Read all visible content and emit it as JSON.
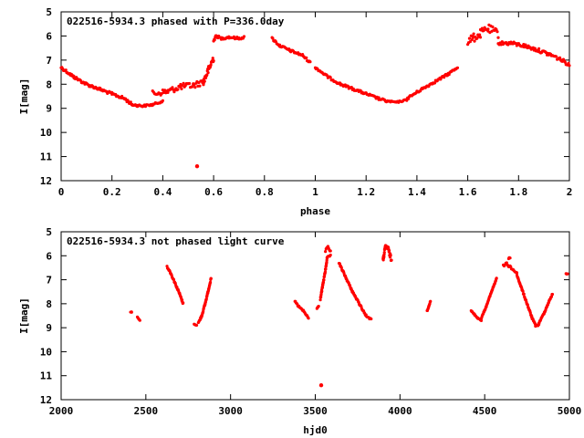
{
  "chart_data": [
    {
      "type": "scatter",
      "title": "022516-5934.3 phased with P=336.0day",
      "xlabel": "phase",
      "ylabel": "I[mag]",
      "xlim": [
        0,
        2
      ],
      "ylim": [
        12,
        5
      ],
      "y_inverted": true,
      "grid": false,
      "legend": "none",
      "color": "#ff0000",
      "xticks": [
        "0",
        "0.2",
        "0.4",
        "0.6",
        "0.8",
        "1",
        "1.2",
        "1.4",
        "1.6",
        "1.8",
        "2"
      ],
      "xtick_values": [
        0,
        0.2,
        0.4,
        0.6,
        0.8,
        1,
        1.2,
        1.4,
        1.6,
        1.8,
        2
      ],
      "yticks": [
        "5",
        "6",
        "7",
        "8",
        "9",
        "10",
        "11",
        "12"
      ],
      "ytick_values": [
        5,
        6,
        7,
        8,
        9,
        10,
        11,
        12
      ],
      "segments": [
        {
          "x": [
            0.0,
            0.05,
            0.1,
            0.15,
            0.2,
            0.25,
            0.28
          ],
          "y": [
            7.3,
            7.7,
            8.0,
            8.2,
            8.4,
            8.6,
            8.85
          ],
          "spread": 0.12
        },
        {
          "x": [
            0.28,
            0.32,
            0.36,
            0.4
          ],
          "y": [
            8.85,
            8.9,
            8.85,
            8.7
          ],
          "spread": 0.08
        },
        {
          "x": [
            0.36,
            0.42,
            0.47,
            0.52,
            0.56
          ],
          "y": [
            8.4,
            8.3,
            8.1,
            8.05,
            7.9
          ],
          "spread": 0.25
        },
        {
          "x": [
            0.56,
            0.58,
            0.6
          ],
          "y": [
            7.9,
            7.4,
            6.9
          ],
          "spread": 0.3
        },
        {
          "x": [
            0.6,
            0.61,
            0.63,
            0.66,
            0.7,
            0.72
          ],
          "y": [
            6.2,
            6.0,
            6.1,
            6.05,
            6.1,
            6.05
          ],
          "spread": 0.1
        },
        {
          "x": [
            0.83,
            0.86,
            0.9,
            0.95,
            0.98
          ],
          "y": [
            6.1,
            6.4,
            6.6,
            6.8,
            7.1
          ],
          "spread": 0.1
        },
        {
          "x": [
            1.0,
            1.05,
            1.1,
            1.15,
            1.2,
            1.25,
            1.28
          ],
          "y": [
            7.3,
            7.7,
            8.0,
            8.2,
            8.4,
            8.6,
            8.7
          ],
          "spread": 0.1
        },
        {
          "x": [
            1.28,
            1.32,
            1.36
          ],
          "y": [
            8.7,
            8.75,
            8.65
          ],
          "spread": 0.06
        },
        {
          "x": [
            1.36,
            1.42,
            1.47,
            1.52,
            1.56
          ],
          "y": [
            8.6,
            8.2,
            7.9,
            7.6,
            7.3
          ],
          "spread": 0.1
        },
        {
          "x": [
            1.6,
            1.62,
            1.65,
            1.68,
            1.72
          ],
          "y": [
            6.2,
            6.1,
            5.9,
            5.7,
            5.9
          ],
          "spread": 0.35
        },
        {
          "x": [
            1.72,
            1.77,
            1.82,
            1.88,
            1.93,
            1.97,
            2.0
          ],
          "y": [
            6.3,
            6.3,
            6.4,
            6.6,
            6.8,
            7.0,
            7.2
          ],
          "spread": 0.15
        }
      ],
      "outliers": [
        {
          "x": 0.535,
          "y": 11.4
        },
        {
          "x": 0.3,
          "y": 8.9
        }
      ]
    },
    {
      "type": "scatter",
      "title": "022516-5934.3 not phased light curve",
      "xlabel": "hjd0",
      "ylabel": "I[mag]",
      "xlim": [
        2000,
        5000
      ],
      "ylim": [
        12,
        5
      ],
      "y_inverted": true,
      "grid": false,
      "legend": "none",
      "color": "#ff0000",
      "xticks": [
        "2000",
        "2500",
        "3000",
        "3500",
        "4000",
        "4500",
        "5000"
      ],
      "xtick_values": [
        2000,
        2500,
        3000,
        3500,
        4000,
        4500,
        5000
      ],
      "yticks": [
        "5",
        "6",
        "7",
        "8",
        "9",
        "10",
        "11",
        "12"
      ],
      "ytick_values": [
        5,
        6,
        7,
        8,
        9,
        10,
        11,
        12
      ],
      "segments": [
        {
          "x": [
            2410
          ],
          "y": [
            8.35
          ],
          "spread": 0.02
        },
        {
          "x": [
            2450,
            2465
          ],
          "y": [
            8.55,
            8.7
          ],
          "spread": 0.02
        },
        {
          "x": [
            2625,
            2645,
            2670,
            2700,
            2720
          ],
          "y": [
            6.45,
            6.7,
            7.1,
            7.6,
            8.0
          ],
          "spread": 0.08
        },
        {
          "x": [
            2785,
            2800
          ],
          "y": [
            8.85,
            8.9
          ],
          "spread": 0.02
        },
        {
          "x": [
            2810,
            2830,
            2850,
            2870,
            2885
          ],
          "y": [
            8.8,
            8.5,
            8.0,
            7.4,
            6.95
          ],
          "spread": 0.08
        },
        {
          "x": [
            3380,
            3400,
            3430,
            3460
          ],
          "y": [
            7.9,
            8.1,
            8.3,
            8.6
          ],
          "spread": 0.06
        },
        {
          "x": [
            3510,
            3520
          ],
          "y": [
            8.2,
            8.1
          ],
          "spread": 0.03
        },
        {
          "x": [
            3530,
            3545,
            3560,
            3570,
            3590
          ],
          "y": [
            7.8,
            7.2,
            6.6,
            6.1,
            6.0
          ],
          "spread": 0.1
        },
        {
          "x": [
            3560,
            3575,
            3590
          ],
          "y": [
            5.8,
            5.65,
            5.8
          ],
          "spread": 0.1
        },
        {
          "x": [
            3640,
            3680,
            3720,
            3760,
            3800,
            3830
          ],
          "y": [
            6.3,
            6.9,
            7.5,
            8.0,
            8.5,
            8.65
          ],
          "spread": 0.08
        },
        {
          "x": [
            3900,
            3915,
            3930,
            3950
          ],
          "y": [
            6.2,
            5.6,
            5.7,
            6.2
          ],
          "spread": 0.2
        },
        {
          "x": [
            4160,
            4170,
            4180
          ],
          "y": [
            8.3,
            8.1,
            7.9
          ],
          "spread": 0.05
        },
        {
          "x": [
            4420,
            4440,
            4460,
            4480
          ],
          "y": [
            8.3,
            8.45,
            8.6,
            8.7
          ],
          "spread": 0.05
        },
        {
          "x": [
            4480,
            4510,
            4540,
            4570
          ],
          "y": [
            8.6,
            8.1,
            7.5,
            6.95
          ],
          "spread": 0.05
        },
        {
          "x": [
            4610,
            4630,
            4650,
            4670,
            4690
          ],
          "y": [
            6.4,
            6.35,
            6.45,
            6.6,
            6.7
          ],
          "spread": 0.12
        },
        {
          "x": [
            4645
          ],
          "y": [
            6.1
          ],
          "spread": 0.05
        },
        {
          "x": [
            4690,
            4720,
            4750,
            4780,
            4800,
            4820
          ],
          "y": [
            6.8,
            7.4,
            8.0,
            8.6,
            8.9,
            8.9
          ],
          "spread": 0.08
        },
        {
          "x": [
            4820,
            4850,
            4880,
            4900
          ],
          "y": [
            8.8,
            8.4,
            7.9,
            7.6
          ],
          "spread": 0.06
        },
        {
          "x": [
            4985
          ],
          "y": [
            6.75
          ],
          "spread": 0.05
        }
      ],
      "outliers": [
        {
          "x": 3535,
          "y": 11.4
        }
      ]
    }
  ]
}
